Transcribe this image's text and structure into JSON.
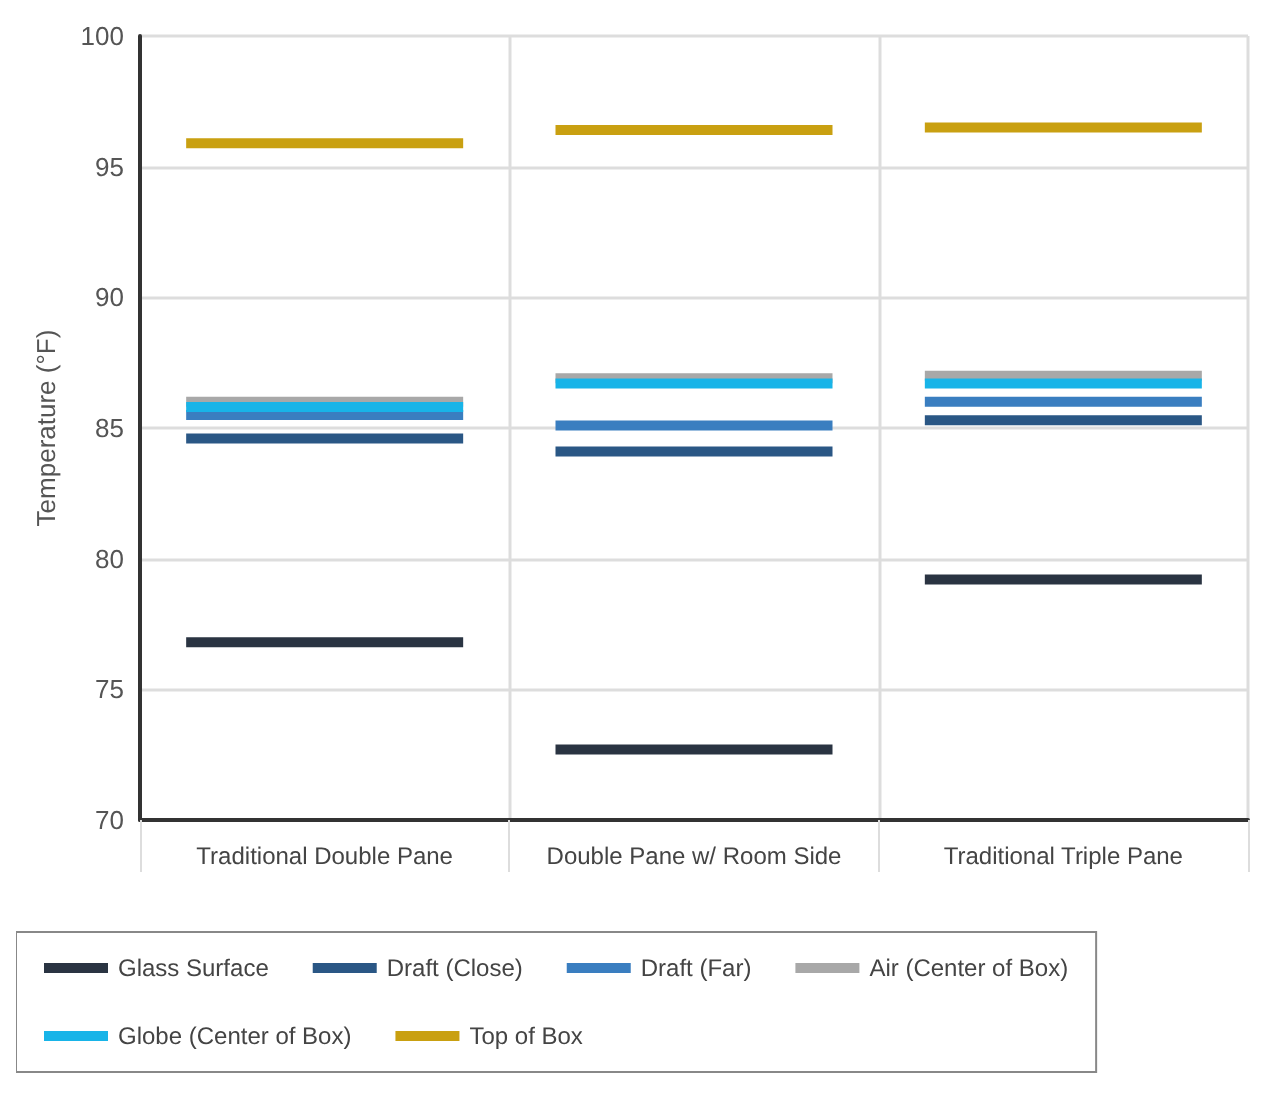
{
  "chart_data": {
    "type": "line",
    "marker": "none",
    "line_style": "solid",
    "ylabel": "Temperature (°F)",
    "categories": [
      null,
      null,
      null,
      null,
      "Traditional Double Pane",
      null,
      null,
      null,
      null,
      null,
      null,
      null,
      "Double Pane w/ Room Side",
      null,
      null,
      null,
      null,
      null,
      null,
      null,
      "Traditional Triple Pane",
      null,
      null,
      null,
      null
    ],
    "ylim": [
      70,
      100
    ],
    "yticks": [
      70,
      75,
      80,
      85,
      90,
      95,
      100
    ],
    "grid": true,
    "legend": "bottom",
    "series": [
      {
        "name": "Glass Surface",
        "color": "#2a3442",
        "values": [
          null,
          76.8,
          76.8,
          76.8,
          76.8,
          76.8,
          76.8,
          76.8,
          null,
          72.7,
          72.7,
          72.7,
          72.7,
          72.7,
          72.7,
          72.7,
          null,
          79.2,
          79.2,
          79.2,
          79.2,
          79.2,
          79.2,
          79.2,
          null
        ]
      },
      {
        "name": "Draft (Close)",
        "color": "#2a5785",
        "values": [
          null,
          84.6,
          84.6,
          84.6,
          84.6,
          84.6,
          84.6,
          84.6,
          null,
          84.1,
          84.1,
          84.1,
          84.1,
          84.1,
          84.1,
          84.1,
          null,
          85.3,
          85.3,
          85.3,
          85.3,
          85.3,
          85.3,
          85.3,
          null
        ]
      },
      {
        "name": "Draft (Far)",
        "color": "#3a7ec0",
        "values": [
          null,
          85.5,
          85.5,
          85.5,
          85.5,
          85.5,
          85.5,
          85.5,
          null,
          85.1,
          85.1,
          85.1,
          85.1,
          85.1,
          85.1,
          85.1,
          null,
          86.0,
          86.0,
          86.0,
          86.0,
          86.0,
          86.0,
          86.0,
          null
        ]
      },
      {
        "name": "Air (Center of Box)",
        "color": "#a8a8a8",
        "values": [
          null,
          86.0,
          86.0,
          86.0,
          86.0,
          86.0,
          86.0,
          86.0,
          null,
          86.9,
          86.9,
          86.9,
          86.9,
          86.9,
          86.9,
          86.9,
          null,
          87.0,
          87.0,
          87.0,
          87.0,
          87.0,
          87.0,
          87.0,
          null
        ]
      },
      {
        "name": "Globe (Center of Box)",
        "color": "#18b4e8",
        "values": [
          null,
          85.8,
          85.8,
          85.8,
          85.8,
          85.8,
          85.8,
          85.8,
          null,
          86.7,
          86.7,
          86.7,
          86.7,
          86.7,
          86.7,
          86.7,
          null,
          86.7,
          86.7,
          86.7,
          86.7,
          86.7,
          86.7,
          86.7,
          null
        ]
      },
      {
        "name": "Top of Box",
        "color": "#c9a011",
        "values": [
          null,
          95.9,
          95.9,
          95.9,
          95.9,
          95.9,
          95.9,
          95.9,
          null,
          96.4,
          96.4,
          96.4,
          96.4,
          96.4,
          96.4,
          96.4,
          null,
          96.5,
          96.5,
          96.5,
          96.5,
          96.5,
          96.5,
          96.5,
          null
        ]
      }
    ]
  }
}
